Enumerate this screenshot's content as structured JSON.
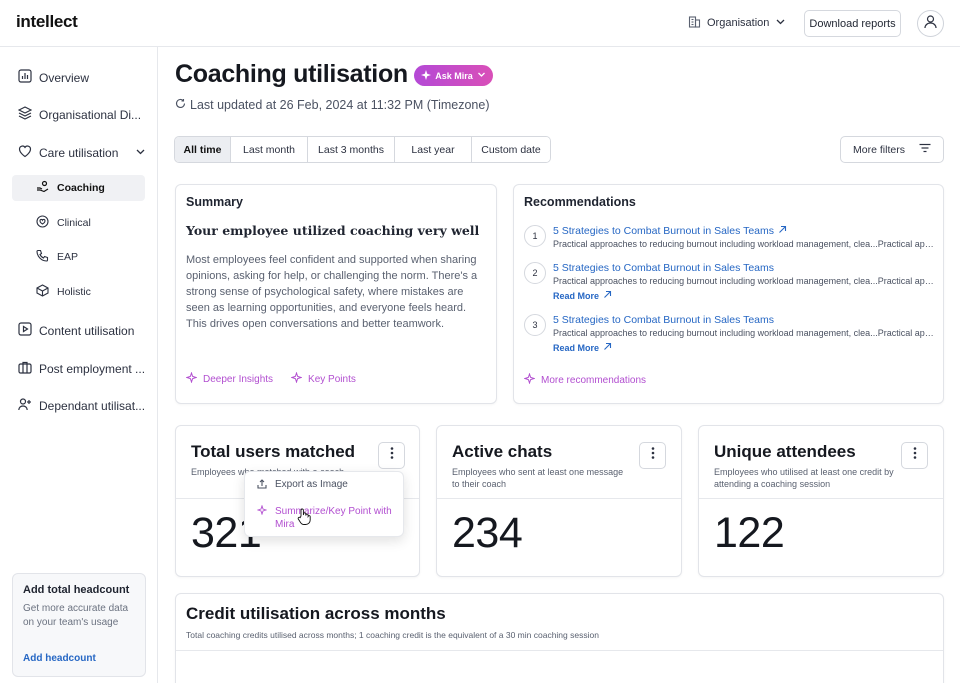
{
  "topbar": {
    "logo": "intellect",
    "org_label": "Organisation",
    "download_label": "Download reports"
  },
  "sidebar": {
    "items": [
      {
        "label": "Overview"
      },
      {
        "label": "Organisational Di..."
      },
      {
        "label": "Care utilisation"
      },
      {
        "label": "Content utilisation"
      },
      {
        "label": "Post employment ..."
      },
      {
        "label": "Dependant utilisat..."
      }
    ],
    "sub_items": [
      {
        "label": "Coaching",
        "active": true
      },
      {
        "label": "Clinical"
      },
      {
        "label": "EAP"
      },
      {
        "label": "Holistic"
      }
    ],
    "headcount": {
      "title": "Add total headcount",
      "desc": "Get more accurate data on your team's usage",
      "link": "Add headcount"
    }
  },
  "header": {
    "title": "Coaching utilisation",
    "ask_mira": "Ask Mira",
    "updated": "Last updated at 26 Feb, 2024 at 11:32 PM (Timezone)"
  },
  "filters": {
    "tabs": [
      "All time",
      "Last month",
      "Last 3 months",
      "Last year",
      "Custom date"
    ],
    "active": "All time",
    "more": "More filters"
  },
  "summary": {
    "title": "Summary",
    "headline": "Your employee utilized coaching very well",
    "body": "Most employees feel confident and supported when sharing opinions, asking for help, or challenging the norm. There's a strong sense of psychological safety, where mistakes are seen as learning opportunities, and everyone feels heard. This drives open conversations and better teamwork.",
    "links": [
      "Deeper Insights",
      "Key Points"
    ]
  },
  "recommendations": {
    "title": "Recommendations",
    "items": [
      {
        "num": "1",
        "title": "5 Strategies to Combat Burnout in Sales Teams",
        "desc": "Practical approaches to reducing burnout including workload management, clea...Practical approac...",
        "read_more": ""
      },
      {
        "num": "2",
        "title": "5 Strategies to Combat Burnout in Sales Teams",
        "desc": "Practical approaches to reducing burnout including workload management, clea...Practical approac...",
        "read_more": "Read More"
      },
      {
        "num": "3",
        "title": "5 Strategies to Combat Burnout in Sales Teams",
        "desc": "Practical approaches to reducing burnout including workload management, clea...Practical approac...",
        "read_more": "Read More"
      }
    ],
    "more": "More recommendations"
  },
  "stats": [
    {
      "title": "Total users matched",
      "desc": "Employees who matched with a coach",
      "value": "321"
    },
    {
      "title": "Active chats",
      "desc": "Employees who sent at least one message to their coach",
      "value": "234"
    },
    {
      "title": "Unique attendees",
      "desc": "Employees who utilised at least one credit by attending a coaching session",
      "value": "122"
    }
  ],
  "context_menu": {
    "export": "Export as Image",
    "summarize": "Summarize/Key Point with Mira"
  },
  "credit": {
    "title": "Credit utilisation across months",
    "desc": "Total coaching credits utilised across months; 1 coaching credit is the equivalent of a 30 min coaching session"
  },
  "colors": {
    "accent": "#2667c4",
    "mira": "#b24fd0"
  }
}
